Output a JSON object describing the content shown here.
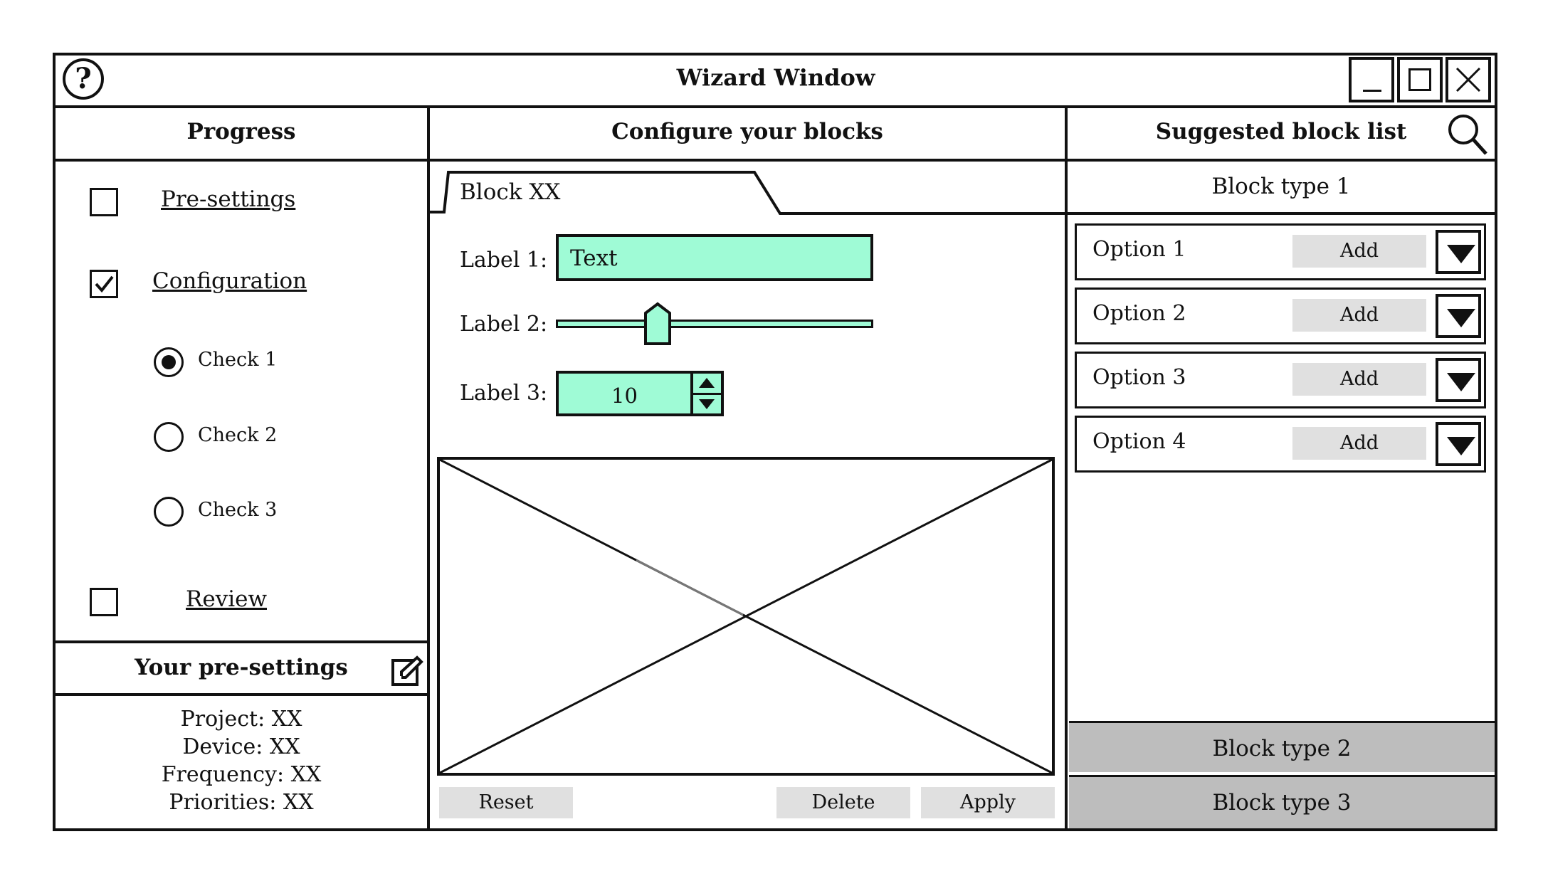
{
  "window": {
    "title": "Wizard Window"
  },
  "progress": {
    "title": "Progress",
    "steps": [
      {
        "label": "Pre-settings",
        "checked": false
      },
      {
        "label": "Configuration",
        "checked": true
      },
      {
        "label": "Review",
        "checked": false
      }
    ],
    "checks": [
      {
        "label": "Check 1",
        "selected": true
      },
      {
        "label": "Check 2",
        "selected": false
      },
      {
        "label": "Check 3",
        "selected": false
      }
    ]
  },
  "presettings": {
    "title": "Your pre-settings",
    "lines": [
      "Project: XX",
      "Device: XX",
      "Frequency: XX",
      "Priorities: XX"
    ]
  },
  "configure": {
    "title": "Configure your blocks",
    "tab_label": "Block XX",
    "label1": "Label 1:",
    "text_value": "Text",
    "label2": "Label 2:",
    "slider_fraction": 0.32,
    "label3": "Label 3:",
    "stepper_value": "10",
    "buttons": {
      "reset": "Reset",
      "delete": "Delete",
      "apply": "Apply"
    }
  },
  "suggested": {
    "title": "Suggested block list",
    "type1": "Block type 1",
    "type2": "Block type 2",
    "type3": "Block type 3",
    "add_label": "Add",
    "options": [
      "Option 1",
      "Option 2",
      "Option 3",
      "Option 4"
    ]
  },
  "colors": {
    "accent": "#9ffbd6",
    "button_gray": "#e0e0e0",
    "collapsed_gray": "#bdbdbd"
  }
}
